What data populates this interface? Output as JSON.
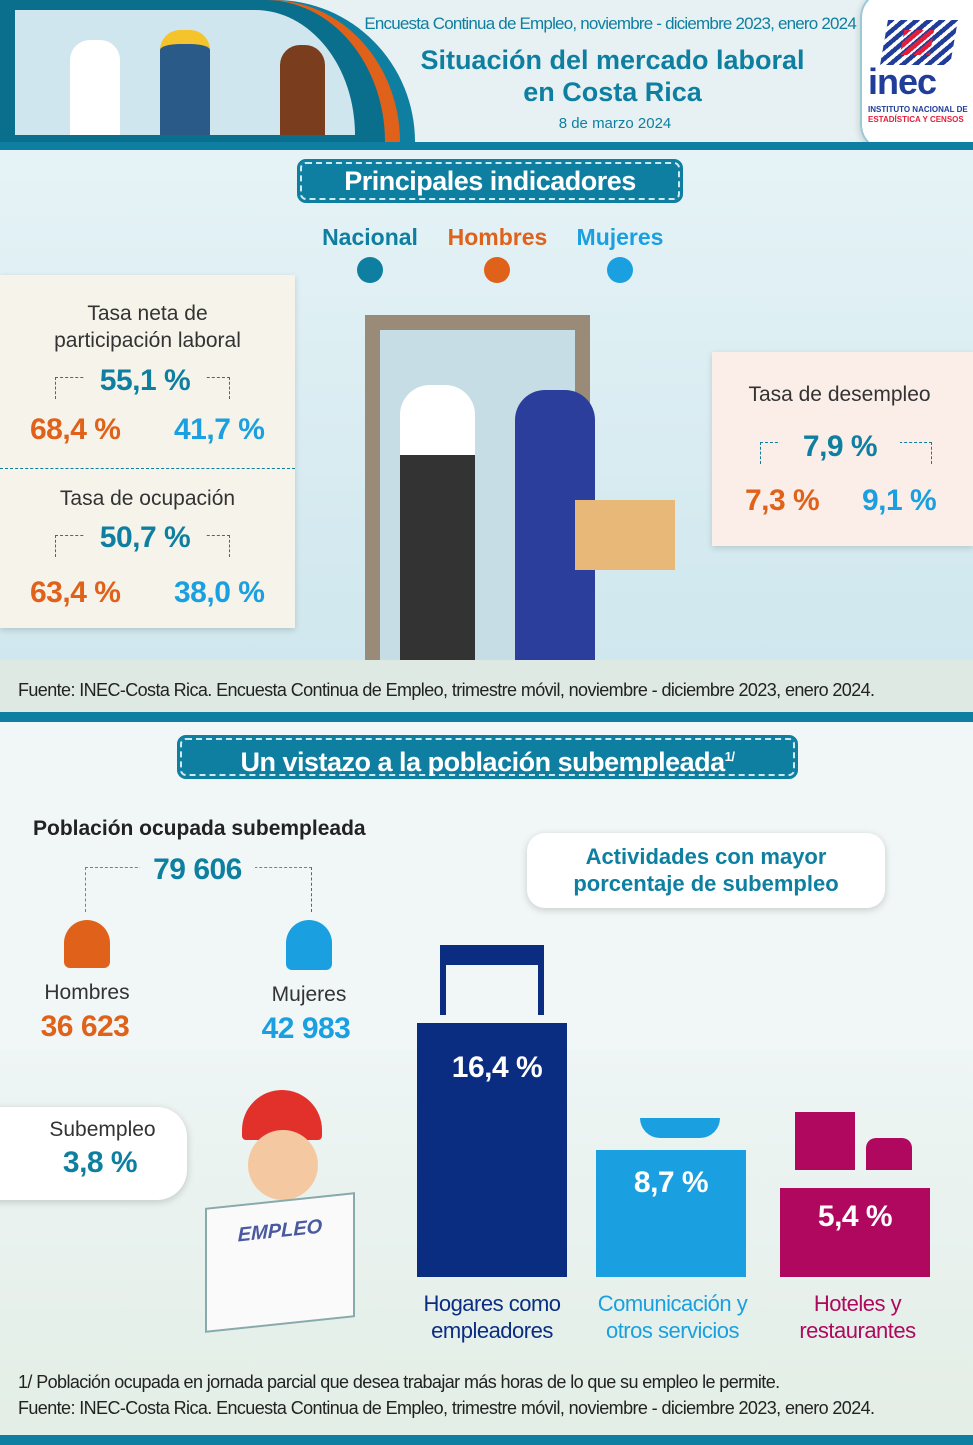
{
  "header": {
    "survey": "Encuesta Continua de Empleo, noviembre - diciembre 2023, enero 2024",
    "title_line1": "Situación del mercado laboral",
    "title_line2": "en Costa Rica",
    "date": "8 de marzo 2024",
    "logo": {
      "name": "inec",
      "sub1": "INSTITUTO NACIONAL DE",
      "sub2": "ESTADÍSTICA Y CENSOS"
    }
  },
  "colors": {
    "nacional": "#0e7fa0",
    "hombres": "#e0621a",
    "mujeres": "#1aa0e0",
    "hogares": "#0a2d82",
    "comunicacion": "#1aa0e0",
    "hoteles": "#b0085e"
  },
  "indicators": {
    "heading": "Principales indicadores",
    "legend": [
      "Nacional",
      "Hombres",
      "Mujeres"
    ],
    "participation": {
      "title1": "Tasa neta de",
      "title2": "participación laboral",
      "nacional": "55,1 %",
      "hombres": "68,4 %",
      "mujeres": "41,7 %"
    },
    "occupation": {
      "title": "Tasa de ocupación",
      "nacional": "50,7 %",
      "hombres": "63,4 %",
      "mujeres": "38,0 %"
    },
    "unemployment": {
      "title": "Tasa de desempleo",
      "nacional": "7,9 %",
      "hombres": "7,3 %",
      "mujeres": "9,1 %"
    },
    "source": "Fuente: INEC-Costa Rica. Encuesta Continua de Empleo, trimestre móvil, noviembre - diciembre 2023, enero 2024."
  },
  "underemployment": {
    "heading": "Un vistazo a la población subempleada",
    "heading_note": "1/",
    "pop_title": "Población ocupada subempleada",
    "total": "79 606",
    "men_label": "Hombres",
    "men_value": "36 623",
    "women_label": "Mujeres",
    "women_value": "42 983",
    "rate_label": "Subempleo",
    "rate_value": "3,8 %",
    "newspaper": "EMPLEO",
    "activities_title1": "Actividades con mayor",
    "activities_title2": "porcentaje de subempleo",
    "activities": [
      {
        "label1": "Hogares como",
        "label2": "empleadores",
        "value": "16,4 %"
      },
      {
        "label1": "Comunicación y",
        "label2": "otros servicios",
        "value": "8,7 %"
      },
      {
        "label1": "Hoteles y",
        "label2": "restaurantes",
        "value": "5,4 %"
      }
    ],
    "footnote": "1/ Población ocupada en jornada parcial que desea trabajar más horas de lo que su empleo le permite.",
    "source": "Fuente: INEC-Costa Rica. Encuesta Continua de Empleo, trimestre móvil, noviembre - diciembre 2023, enero 2024."
  },
  "chart_data": {
    "type": "bar",
    "categories": [
      "Hogares como empleadores",
      "Comunicación y otros servicios",
      "Hoteles y restaurantes"
    ],
    "values": [
      16.4,
      8.7,
      5.4
    ],
    "ylabel": ""
  }
}
